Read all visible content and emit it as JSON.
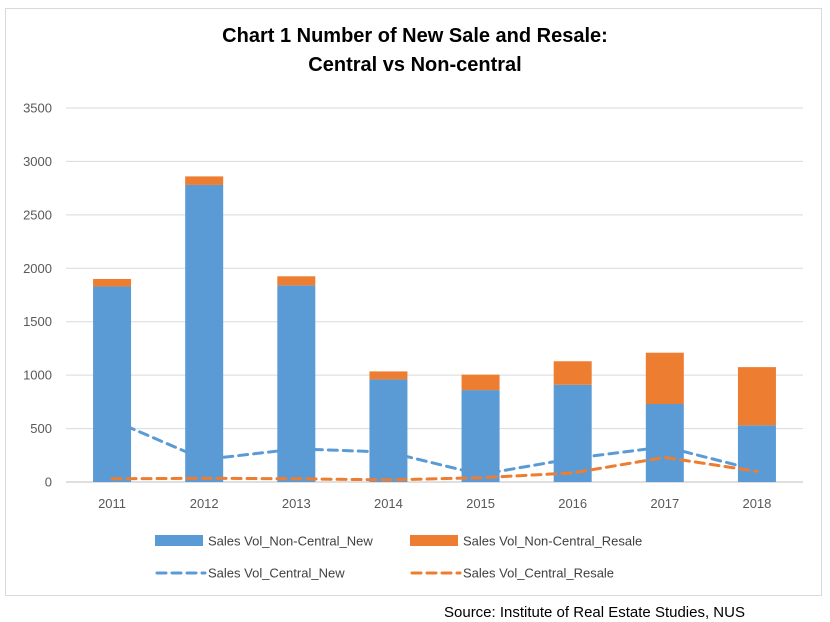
{
  "chart_data": {
    "type": "bar",
    "title_line1": "Chart 1  Number of New Sale and Resale:",
    "title_line2": "Central vs Non-central",
    "categories": [
      "2011",
      "2012",
      "2013",
      "2014",
      "2015",
      "2016",
      "2017",
      "2018"
    ],
    "ylim": [
      0,
      3500
    ],
    "yticks": [
      0,
      500,
      1000,
      1500,
      2000,
      2500,
      3000,
      3500
    ],
    "grid": true,
    "legend_position": "bottom",
    "bar_series": [
      {
        "name": "Sales Vol_Non-Central_New",
        "color": "#5b9bd5",
        "values": [
          1830,
          2780,
          1840,
          960,
          860,
          910,
          730,
          530
        ]
      },
      {
        "name": "Sales Vol_Non-Central_Resale",
        "color": "#ed7d31",
        "values": [
          70,
          80,
          85,
          75,
          145,
          220,
          480,
          545
        ]
      }
    ],
    "line_series": [
      {
        "name": "Sales Vol_Central_New",
        "color": "#5b9bd5",
        "style": "dashed",
        "values": [
          580,
          210,
          310,
          280,
          70,
          220,
          330,
          110
        ]
      },
      {
        "name": "Sales Vol_Central_Resale",
        "color": "#ed7d31",
        "style": "dashed",
        "values": [
          30,
          35,
          30,
          20,
          40,
          85,
          230,
          100
        ]
      }
    ]
  },
  "source": "Source: Institute of Real Estate Studies, NUS"
}
